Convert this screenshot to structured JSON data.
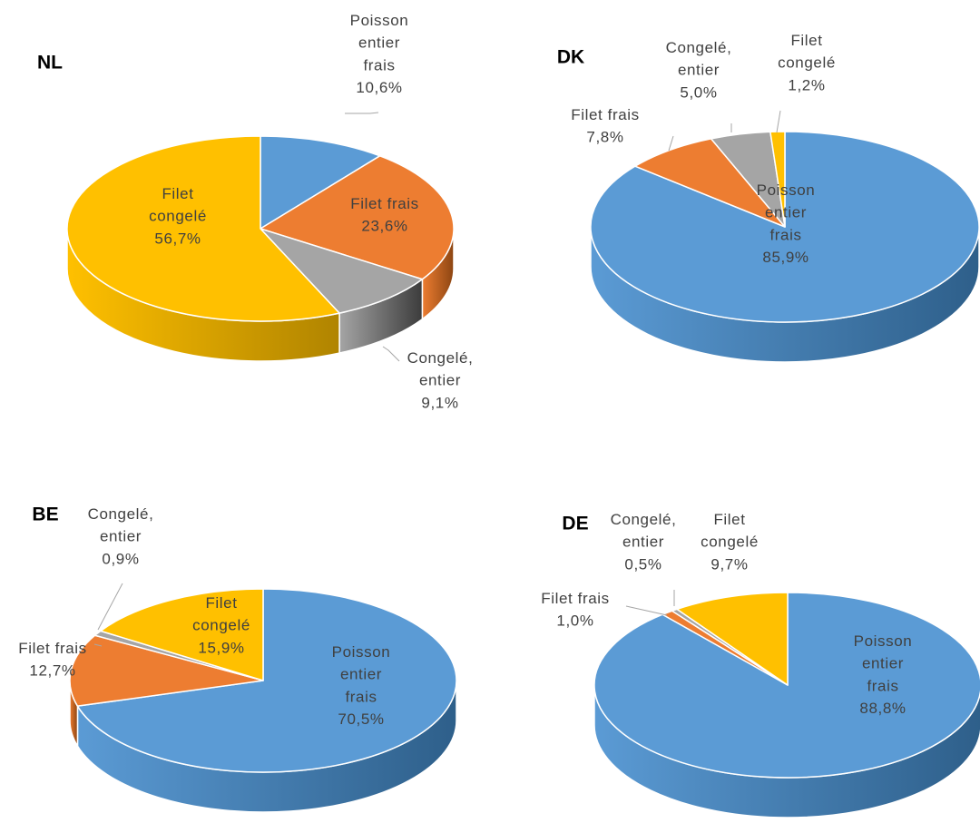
{
  "chart_data": [
    {
      "type": "pie",
      "title": "NL",
      "categories": [
        "Poisson entier frais",
        "Filet frais",
        "Congelé, entier",
        "Filet congelé"
      ],
      "values": [
        10.6,
        23.6,
        9.1,
        56.7
      ],
      "labels": [
        [
          "Poisson",
          "entier",
          "frais",
          "10,6%"
        ],
        [
          "Filet frais",
          "23,6%"
        ],
        [
          "Congelé,",
          "entier",
          "9,1%"
        ],
        [
          "Filet",
          "congelé",
          "56,7%"
        ]
      ]
    },
    {
      "type": "pie",
      "title": "DK",
      "categories": [
        "Poisson entier frais",
        "Filet frais",
        "Congelé, entier",
        "Filet congelé"
      ],
      "values": [
        85.9,
        7.8,
        5.0,
        1.2
      ],
      "labels": [
        [
          "Poisson",
          "entier",
          "frais",
          "85,9%"
        ],
        [
          "Filet frais",
          "7,8%"
        ],
        [
          "Congelé,",
          "entier",
          "5,0%"
        ],
        [
          "Filet",
          "congelé",
          "1,2%"
        ]
      ]
    },
    {
      "type": "pie",
      "title": "BE",
      "categories": [
        "Poisson entier frais",
        "Filet frais",
        "Congelé, entier",
        "Filet congelé"
      ],
      "values": [
        70.5,
        12.7,
        0.9,
        15.9
      ],
      "labels": [
        [
          "Poisson",
          "entier",
          "frais",
          "70,5%"
        ],
        [
          "Filet frais",
          "12,7%"
        ],
        [
          "Congelé,",
          "entier",
          "0,9%"
        ],
        [
          "Filet",
          "congelé",
          "15,9%"
        ]
      ]
    },
    {
      "type": "pie",
      "title": "DE",
      "categories": [
        "Poisson entier frais",
        "Filet frais",
        "Congelé, entier",
        "Filet congelé"
      ],
      "values": [
        88.8,
        1.0,
        0.5,
        9.7
      ],
      "labels": [
        [
          "Poisson",
          "entier",
          "frais",
          "88,8%"
        ],
        [
          "Filet frais",
          "1,0%"
        ],
        [
          "Congelé,",
          "entier",
          "0,5%"
        ],
        [
          "Filet",
          "congelé",
          "9,7%"
        ]
      ]
    }
  ],
  "colors": {
    "poisson_entier_frais": "#5B9BD5",
    "filet_frais": "#ED7D31",
    "congele_entier": "#A5A5A5",
    "filet_congele": "#FFC000"
  }
}
